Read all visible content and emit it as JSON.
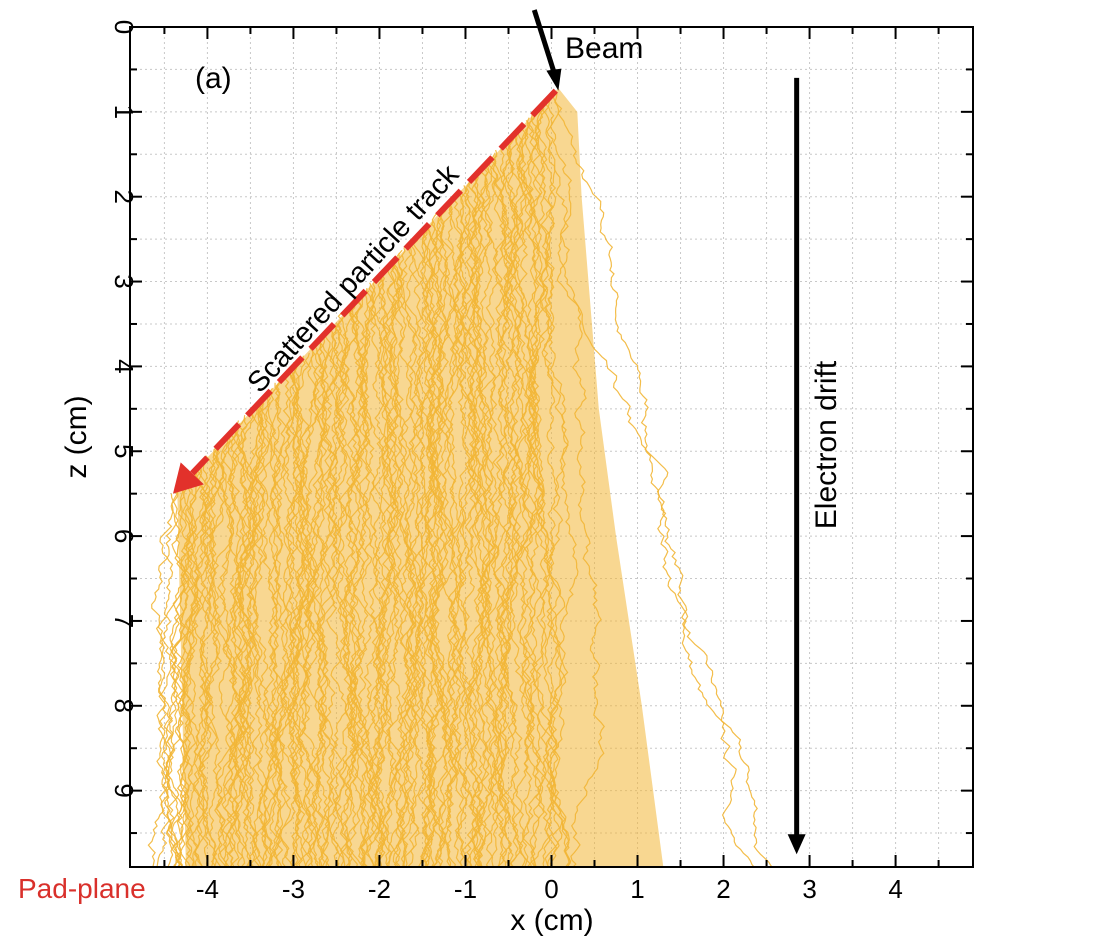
{
  "chart_data": {
    "type": "line",
    "panel_label": "(a)",
    "xlabel": "x (cm)",
    "ylabel": "z (cm)",
    "xlim": [
      -4.9,
      4.9
    ],
    "ylim": [
      0,
      9.9
    ],
    "y_inverted": true,
    "x_ticks": [
      -4,
      -3,
      -2,
      -1,
      0,
      1,
      2,
      3,
      4
    ],
    "y_ticks": [
      0,
      1,
      2,
      3,
      4,
      5,
      6,
      7,
      8,
      9
    ],
    "grid": true,
    "colors": {
      "tracks": "#f2b636",
      "track_arrow": "#e2312b",
      "annotation_arrows": "#000000",
      "pad_plane_label": "#d9302b",
      "frame": "#000000",
      "grid": "#c8c8c8"
    },
    "beam_arrow": {
      "from": [
        -0.2,
        -0.2
      ],
      "to": [
        0.08,
        0.75
      ]
    },
    "scattered_track": {
      "from": [
        0.05,
        0.75
      ],
      "to": [
        -4.4,
        5.5
      ]
    },
    "drift_arrow": {
      "x": 2.85,
      "from_z": 0.6,
      "to_z": 9.75
    },
    "cloud_envelope": [
      [
        0.08,
        0.72
      ],
      [
        0.3,
        1.0
      ],
      [
        0.35,
        2.0
      ],
      [
        0.55,
        4.5
      ],
      [
        0.75,
        6.0
      ],
      [
        1.05,
        8.0
      ],
      [
        1.3,
        9.9
      ],
      [
        -4.25,
        9.9
      ],
      [
        -4.35,
        5.5
      ],
      [
        -4.4,
        5.5
      ]
    ],
    "annotations": {
      "beam": "Beam",
      "track": "Scattered particle track",
      "drift": "Electron drift",
      "pad_plane": "Pad-plane"
    }
  }
}
